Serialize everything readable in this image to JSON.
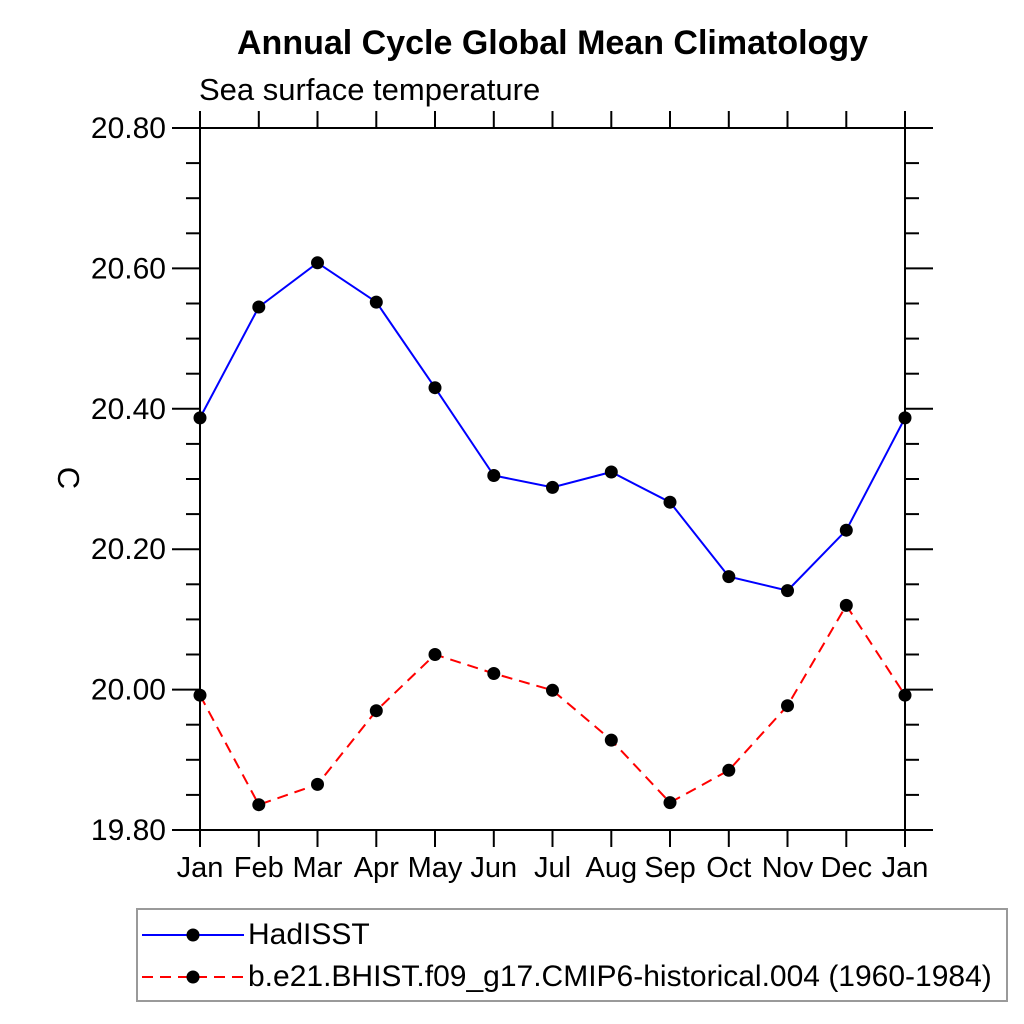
{
  "title": "Annual Cycle Global Mean Climatology",
  "subtitle": "Sea surface temperature",
  "y_axis_title": "C",
  "colors": {
    "background": "#ffffff",
    "axis": "#000000",
    "marker": "#000000",
    "hadisst_line": "#0000ff",
    "model_line": "#ff0000",
    "legend_border": "#9a9a9a"
  },
  "legend": {
    "items": [
      {
        "label": "HadISST",
        "color": "#0000ff",
        "line_style": "solid",
        "marker": "filled-circle"
      },
      {
        "label": "b.e21.BHIST.f09_g17.CMIP6-historical.004 (1960-1984)",
        "color": "#ff0000",
        "line_style": "dashed",
        "marker": "filled-circle"
      }
    ]
  },
  "chart_data": {
    "type": "line",
    "title": "Annual Cycle Global Mean Climatology",
    "subtitle": "Sea surface temperature",
    "xlabel": "",
    "ylabel": "C",
    "categories": [
      "Jan",
      "Feb",
      "Mar",
      "Apr",
      "May",
      "Jun",
      "Jul",
      "Aug",
      "Sep",
      "Oct",
      "Nov",
      "Dec",
      "Jan"
    ],
    "series": [
      {
        "name": "HadISST",
        "color": "#0000ff",
        "line_style": "solid",
        "marker": "filled-circle",
        "values": [
          20.387,
          20.545,
          20.608,
          20.552,
          20.43,
          20.305,
          20.288,
          20.31,
          20.267,
          20.161,
          20.141,
          20.227,
          20.387
        ]
      },
      {
        "name": "b.e21.BHIST.f09_g17.CMIP6-historical.004 (1960-1984)",
        "color": "#ff0000",
        "line_style": "dashed",
        "marker": "filled-circle",
        "values": [
          19.992,
          19.836,
          19.865,
          19.97,
          20.05,
          20.023,
          19.999,
          19.928,
          19.839,
          19.885,
          19.977,
          20.12,
          19.992
        ]
      }
    ],
    "ylim": [
      19.8,
      20.8
    ],
    "y_major_ticks": [
      19.8,
      20.0,
      20.2,
      20.4,
      20.6,
      20.8
    ],
    "y_tick_labels": [
      "19.80",
      "20.00",
      "20.20",
      "20.40",
      "20.60",
      "20.80"
    ],
    "y_minor_step": 0.05,
    "grid": false,
    "legend_position": "bottom-left",
    "ticks_direction": "out"
  }
}
